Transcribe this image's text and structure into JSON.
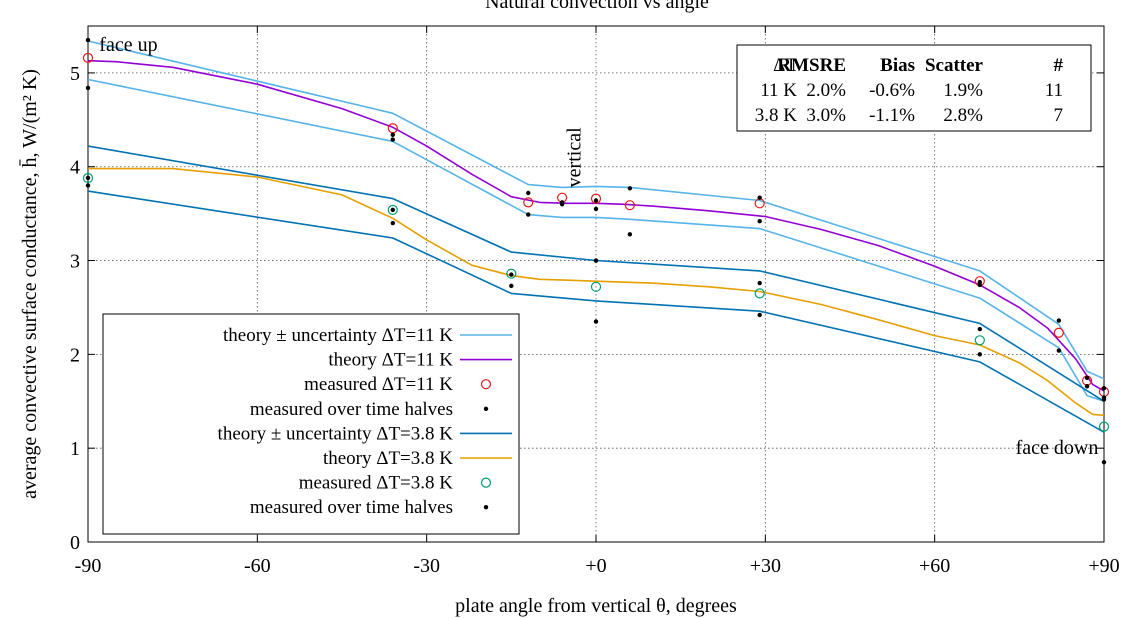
{
  "chart_data": {
    "type": "line",
    "title": "Natural convection vs angle",
    "xlabel": "plate angle from vertical θ, degrees",
    "ylabel": "average convective surface conductance, h̄,  W/(m² K)",
    "xlim": [
      -90,
      90
    ],
    "ylim": [
      0,
      5.5
    ],
    "x_ticks": [
      -90,
      -60,
      -30,
      0,
      30,
      60,
      90
    ],
    "x_tick_labels": [
      "-90",
      "-60",
      "-30",
      "+0",
      "+30",
      "+60",
      "+90"
    ],
    "y_ticks": [
      0,
      1,
      2,
      3,
      4,
      5
    ],
    "y_tick_labels": [
      "0",
      "1",
      "2",
      "3",
      "4",
      "5"
    ],
    "grid": true,
    "legend_position": "bottom-left",
    "annotations": [
      {
        "text": "face up",
        "x": -88,
        "y": 5.3
      },
      {
        "text": "vertical",
        "x": -2,
        "y": 4.1,
        "rotated": true
      },
      {
        "text": "face down",
        "x": 89,
        "y": 1.0
      }
    ],
    "series": [
      {
        "name": "theory ± uncertainty ΔT=11 K",
        "color": "#56b4e9",
        "kind": "line",
        "x": [
          -90,
          -36,
          -12,
          -6,
          0,
          6,
          29,
          68,
          82,
          87,
          90
        ],
        "y": [
          5.34,
          4.57,
          3.81,
          3.78,
          3.79,
          3.78,
          3.64,
          2.89,
          2.32,
          1.82,
          1.74
        ]
      },
      {
        "name": "",
        "color": "#56b4e9",
        "kind": "line",
        "x": [
          -90,
          -36,
          -12,
          -6,
          0,
          6,
          29,
          68,
          82,
          87,
          90
        ],
        "y": [
          4.93,
          4.27,
          3.49,
          3.46,
          3.46,
          3.44,
          3.34,
          2.6,
          2.07,
          1.56,
          1.5
        ]
      },
      {
        "name": "theory ΔT=11 K",
        "color": "#9400d3",
        "kind": "line",
        "x": [
          -90,
          -85,
          -75,
          -60,
          -45,
          -36,
          -30,
          -22,
          -15,
          -10,
          -5,
          0,
          5,
          10,
          20,
          30,
          40,
          50,
          60,
          68,
          75,
          80,
          85,
          88,
          90
        ],
        "y": [
          5.13,
          5.12,
          5.06,
          4.88,
          4.62,
          4.42,
          4.22,
          3.92,
          3.68,
          3.62,
          3.61,
          3.61,
          3.6,
          3.58,
          3.53,
          3.47,
          3.33,
          3.16,
          2.94,
          2.74,
          2.5,
          2.28,
          1.95,
          1.68,
          1.61
        ]
      },
      {
        "name": "measured ΔT=11 K",
        "color": "#e41a1c",
        "kind": "circles",
        "x": [
          -90,
          -36,
          -12,
          -6,
          0,
          6,
          29,
          68,
          82,
          87,
          90
        ],
        "y": [
          5.16,
          4.41,
          3.62,
          3.67,
          3.66,
          3.59,
          3.61,
          2.78,
          2.23,
          1.72,
          1.6
        ]
      },
      {
        "name": "measured over time halves",
        "color": "#000000",
        "kind": "dots",
        "x": [
          -90,
          -90,
          -36,
          -36,
          -12,
          -12,
          -6,
          -6,
          0,
          0,
          6,
          6,
          29,
          29,
          68,
          68,
          82,
          82,
          87,
          87,
          90,
          90
        ],
        "y": [
          5.35,
          4.84,
          4.34,
          4.29,
          3.72,
          3.49,
          3.6,
          3.62,
          3.64,
          3.55,
          3.77,
          3.28,
          3.67,
          3.42,
          2.77,
          2.74,
          2.36,
          2.04,
          1.66,
          1.75,
          1.64,
          1.54
        ]
      },
      {
        "name": "theory ± uncertainty ΔT=3.8 K",
        "color": "#0072b2",
        "kind": "line",
        "x": [
          -90,
          -36,
          -15,
          0,
          29,
          68,
          90
        ],
        "y": [
          4.22,
          3.66,
          3.09,
          3.0,
          2.89,
          2.33,
          1.5
        ]
      },
      {
        "name": "",
        "color": "#0072b2",
        "kind": "line",
        "x": [
          -90,
          -36,
          -15,
          0,
          29,
          68,
          90
        ],
        "y": [
          3.74,
          3.24,
          2.65,
          2.57,
          2.46,
          1.92,
          1.17
        ]
      },
      {
        "name": "theory ΔT=3.8 K",
        "color": "#e69f00",
        "kind": "line",
        "x": [
          -90,
          -75,
          -60,
          -45,
          -36,
          -30,
          -22,
          -15,
          -10,
          -5,
          0,
          10,
          20,
          29,
          40,
          50,
          60,
          68,
          75,
          80,
          85,
          88,
          90
        ],
        "y": [
          3.98,
          3.98,
          3.89,
          3.7,
          3.45,
          3.22,
          2.95,
          2.84,
          2.8,
          2.79,
          2.78,
          2.76,
          2.72,
          2.67,
          2.53,
          2.37,
          2.2,
          2.1,
          1.91,
          1.72,
          1.48,
          1.36,
          1.35
        ]
      },
      {
        "name": "measured ΔT=3.8 K",
        "color": "#009e73",
        "kind": "circles",
        "x": [
          -90,
          -36,
          -15,
          0,
          29,
          68,
          90
        ],
        "y": [
          3.88,
          3.54,
          2.86,
          2.72,
          2.65,
          2.15,
          1.23
        ]
      },
      {
        "name": "measured over time halves",
        "color": "#000000",
        "kind": "dots",
        "x": [
          -90,
          -90,
          -36,
          -36,
          -15,
          -15,
          0,
          0,
          29,
          29,
          68,
          68,
          90,
          90
        ],
        "y": [
          3.8,
          3.88,
          3.54,
          3.4,
          2.85,
          2.73,
          3.0,
          2.35,
          2.76,
          2.42,
          2.27,
          2.0,
          1.52,
          0.85
        ]
      }
    ],
    "stats_table": {
      "headers": [
        "ΔT",
        "RMSRE",
        "Bias",
        "Scatter",
        "#"
      ],
      "rows": [
        [
          "11 K",
          "2.0%",
          "-0.6%",
          "1.9%",
          "11"
        ],
        [
          "3.8 K",
          "3.0%",
          "-1.1%",
          "2.8%",
          "7"
        ]
      ]
    }
  }
}
